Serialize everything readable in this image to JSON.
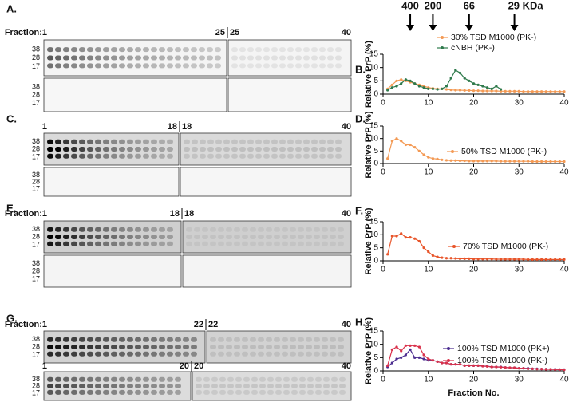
{
  "blots": [
    {
      "label": "A.",
      "rows": [
        {
          "lanes": [
            "Fraction:1",
            "25",
            "25",
            "40"
          ],
          "mw": [
            "38",
            "28",
            "17"
          ]
        },
        {
          "lanes": [],
          "mw": [
            "38",
            "28",
            "17"
          ]
        }
      ]
    },
    {
      "label": "C.",
      "rows": [
        {
          "lanes": [
            "1",
            "18",
            "18",
            "40"
          ],
          "mw": [
            "38",
            "28",
            "17"
          ]
        },
        {
          "lanes": [],
          "mw": [
            "38",
            "28",
            "17"
          ]
        }
      ]
    },
    {
      "label": "E.",
      "rows": [
        {
          "lanes": [
            "Fraction:1",
            "18",
            "18",
            "40"
          ],
          "mw": [
            "38",
            "28",
            "17"
          ]
        },
        {
          "lanes": [],
          "mw": [
            "38",
            "28",
            "17"
          ]
        }
      ]
    },
    {
      "label": "G.",
      "rows": [
        {
          "lanes": [
            "Fraction:1",
            "22",
            "22",
            "40"
          ],
          "mw": [
            "38",
            "28",
            "17"
          ]
        },
        {
          "lanes": [
            "1",
            "20",
            "20",
            "40"
          ],
          "mw": [
            "38",
            "28",
            "17"
          ]
        }
      ]
    }
  ],
  "chart_data": [
    {
      "type": "line",
      "label": "B.",
      "ylabel": "Relative PrP (%)",
      "markers": [
        {
          "x": 6,
          "label": "400"
        },
        {
          "x": 11,
          "label": "200"
        },
        {
          "x": 19,
          "label": "66"
        },
        {
          "x": 29,
          "label": "29 KDa"
        }
      ],
      "xlim": [
        0,
        40
      ],
      "xticks": [
        0,
        10,
        20,
        30,
        40
      ],
      "ylim": [
        0,
        15
      ],
      "yticks": [
        0,
        5,
        10,
        15
      ],
      "x": [
        1,
        2,
        3,
        4,
        5,
        6,
        7,
        8,
        9,
        10,
        11,
        12,
        13,
        14,
        15,
        16,
        17,
        18,
        19,
        20,
        21,
        22,
        23,
        24,
        25,
        26,
        27,
        28,
        29,
        30,
        31,
        32,
        33,
        34,
        35,
        36,
        37,
        38,
        39,
        40
      ],
      "series": [
        {
          "name": "30% TSD M1000 (PK-)",
          "color": "#f39a55",
          "values": [
            2,
            3.5,
            5,
            5.5,
            5,
            4.5,
            4,
            3.5,
            3,
            2.5,
            2.2,
            2,
            2,
            1.8,
            1.6,
            1.5,
            1.5,
            1.4,
            1.4,
            1.3,
            1.3,
            1.2,
            1.2,
            1.2,
            1.2,
            1.1,
            1.1,
            1.1,
            1.1,
            1.1,
            1,
            1,
            1,
            1,
            1,
            1,
            1,
            1,
            1,
            1
          ]
        },
        {
          "name": "cNBH (PK-)",
          "color": "#2f7a4c",
          "values": [
            1.5,
            2.5,
            3,
            4,
            5.5,
            5,
            4,
            3,
            2.5,
            2,
            2,
            1.8,
            2,
            3,
            6,
            9,
            8,
            6,
            5,
            4,
            3.5,
            3,
            2.5,
            2,
            3,
            1.8,
            null,
            null,
            null,
            null,
            null,
            null,
            null,
            null,
            null,
            null,
            null,
            null,
            null,
            null
          ]
        }
      ]
    },
    {
      "type": "line",
      "label": "D.",
      "ylabel": "Relative PrP (%)",
      "xlim": [
        0,
        40
      ],
      "xticks": [
        0,
        10,
        20,
        30,
        40
      ],
      "ylim": [
        0,
        15
      ],
      "yticks": [
        0,
        5,
        10,
        15
      ],
      "x": [
        1,
        2,
        3,
        4,
        5,
        6,
        7,
        8,
        9,
        10,
        11,
        12,
        13,
        14,
        15,
        16,
        17,
        18,
        19,
        20,
        21,
        22,
        23,
        24,
        25,
        26,
        27,
        28,
        29,
        30,
        31,
        32,
        33,
        34,
        35,
        36,
        37,
        38,
        39,
        40
      ],
      "series": [
        {
          "name": "50% TSD M1000 (PK-)",
          "color": "#f39a55",
          "values": [
            2,
            9,
            10,
            9,
            7.5,
            7.5,
            6.5,
            5,
            3.5,
            2.5,
            2,
            1.8,
            1.5,
            1.3,
            1.2,
            1.2,
            1.1,
            1.1,
            1,
            1,
            1,
            1,
            1,
            1,
            1,
            0.9,
            0.9,
            0.9,
            0.9,
            0.9,
            0.9,
            0.9,
            0.8,
            0.8,
            0.8,
            0.8,
            0.8,
            0.8,
            0.8,
            0.8
          ]
        }
      ]
    },
    {
      "type": "line",
      "label": "F.",
      "ylabel": "Relative PrP (%)",
      "xlim": [
        0,
        40
      ],
      "xticks": [
        0,
        10,
        20,
        30,
        40
      ],
      "ylim": [
        0,
        15
      ],
      "yticks": [
        0,
        5,
        10,
        15
      ],
      "x": [
        1,
        2,
        3,
        4,
        5,
        6,
        7,
        8,
        9,
        10,
        11,
        12,
        13,
        14,
        15,
        16,
        17,
        18,
        19,
        20,
        21,
        22,
        23,
        24,
        25,
        26,
        27,
        28,
        29,
        30,
        31,
        32,
        33,
        34,
        35,
        36,
        37,
        38,
        39,
        40
      ],
      "series": [
        {
          "name": "70% TSD M1000 (PK-)",
          "color": "#e8552a",
          "values": [
            2.5,
            9.5,
            9.5,
            10.5,
            9,
            9,
            8.5,
            7.5,
            5,
            3.5,
            2,
            1.5,
            1.2,
            1,
            1,
            0.9,
            0.8,
            0.8,
            0.8,
            0.7,
            0.7,
            0.7,
            0.7,
            0.7,
            0.6,
            0.6,
            0.6,
            0.6,
            0.6,
            0.6,
            0.6,
            0.5,
            0.5,
            0.5,
            0.5,
            0.5,
            0.5,
            0.5,
            0.5,
            0.5
          ]
        }
      ]
    },
    {
      "type": "line",
      "label": "H.",
      "ylabel": "Relative PrP (%)",
      "xlabel": "Fraction No.",
      "xlim": [
        0,
        40
      ],
      "xticks": [
        0,
        10,
        20,
        30,
        40
      ],
      "ylim": [
        0,
        15
      ],
      "yticks": [
        0,
        5,
        10,
        15
      ],
      "x": [
        1,
        2,
        3,
        4,
        5,
        6,
        7,
        8,
        9,
        10,
        11,
        12,
        13,
        14,
        15,
        16,
        17,
        18,
        19,
        20,
        21,
        22,
        23,
        24,
        25,
        26,
        27,
        28,
        29,
        30,
        31,
        32,
        33,
        34,
        35,
        36,
        37,
        38,
        39,
        40
      ],
      "series": [
        {
          "name": "100% TSD M1000 (PK+)",
          "color": "#4b2c8f",
          "values": [
            1.5,
            3,
            4.5,
            5,
            6,
            8,
            5,
            5,
            4.5,
            4,
            4,
            3.5,
            3,
            3,
            2.5,
            2.5,
            2.5,
            2,
            2,
            2,
            2,
            1.8,
            1.8,
            1.5,
            1.5,
            1.5,
            1.3,
            1.2,
            1.2,
            1,
            1,
            1,
            0.8,
            0.8,
            0.7,
            0.7,
            0.6,
            0.6,
            0.5,
            0.5
          ]
        },
        {
          "name": "100% TSD M1000 (PK-)",
          "color": "#d9304a",
          "values": [
            2,
            8,
            9,
            7.5,
            9.5,
            9.5,
            9.5,
            9,
            6,
            4.5,
            4,
            3.5,
            3,
            3,
            2.5,
            2.5,
            2.5,
            2,
            2,
            2,
            2,
            1.8,
            1.7,
            1.5,
            1.5,
            1.4,
            1.3,
            1.2,
            1.2,
            1,
            1,
            0.8,
            0.8,
            0.7,
            0.7,
            0.6,
            0.6,
            0.5,
            0.5,
            0.4
          ]
        }
      ]
    }
  ]
}
